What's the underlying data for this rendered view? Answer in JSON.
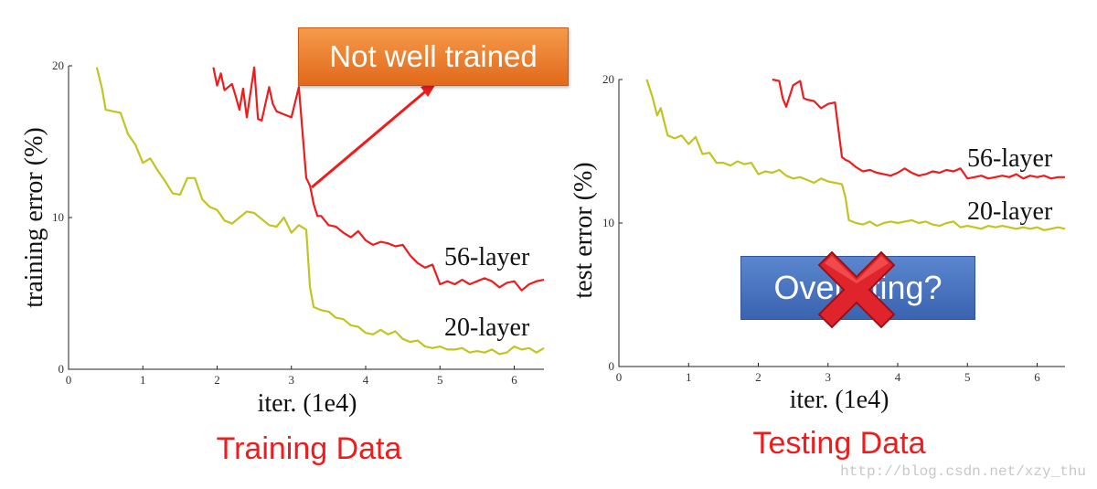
{
  "annotations": {
    "not_well_trained": "Not well trained",
    "overfitting": "Overfitting?"
  },
  "captions": {
    "left": "Training Data",
    "right": "Testing Data"
  },
  "watermark": "http://blog.csdn.net/xzy_thu",
  "colors": {
    "layer56": "#ee1c1c",
    "layer20": "#c3c421",
    "caption": "#ee1c1c",
    "callout": "#ed7d31",
    "overfit_box": "#4472c4",
    "cross": "#e0242b"
  },
  "chart_data": [
    {
      "type": "line",
      "title": "",
      "xlabel": "iter. (1e4)",
      "ylabel": "training error (%)",
      "xlim": [
        0,
        6.4
      ],
      "ylim": [
        0,
        20
      ],
      "xticks": [
        0,
        1,
        2,
        3,
        4,
        5,
        6
      ],
      "yticks": [
        0,
        10,
        20
      ],
      "series": [
        {
          "name": "56-layer",
          "x": [
            1.95,
            2.0,
            2.05,
            2.1,
            2.2,
            2.25,
            2.3,
            2.35,
            2.4,
            2.5,
            2.55,
            2.6,
            2.7,
            2.75,
            2.8,
            2.9,
            3.0,
            3.1,
            3.2,
            3.25,
            3.3,
            3.35,
            3.4,
            3.5,
            3.6,
            3.7,
            3.8,
            3.9,
            4.0,
            4.1,
            4.2,
            4.3,
            4.4,
            4.5,
            4.6,
            4.7,
            4.8,
            4.9,
            5.0,
            5.1,
            5.2,
            5.3,
            5.4,
            5.5,
            5.6,
            5.7,
            5.8,
            5.9,
            6.0,
            6.1,
            6.2,
            6.3,
            6.4
          ],
          "y": [
            19.9,
            18.7,
            19.5,
            18.4,
            18.8,
            18.0,
            17.1,
            18.5,
            16.6,
            19.9,
            16.5,
            16.4,
            18.6,
            17.5,
            17.0,
            16.8,
            16.6,
            18.6,
            12.6,
            12.1,
            10.9,
            10.1,
            10.1,
            9.5,
            9.4,
            9.0,
            8.7,
            9.1,
            8.5,
            8.2,
            8.4,
            8.3,
            8.1,
            8.2,
            7.5,
            7.0,
            6.7,
            6.9,
            5.6,
            5.8,
            5.6,
            5.9,
            5.6,
            5.8,
            6.0,
            5.8,
            5.4,
            5.7,
            5.8,
            5.2,
            5.6,
            5.8,
            5.9
          ]
        },
        {
          "name": "20-layer",
          "x": [
            0.38,
            0.45,
            0.5,
            0.6,
            0.7,
            0.8,
            0.9,
            1.0,
            1.1,
            1.2,
            1.3,
            1.4,
            1.5,
            1.6,
            1.7,
            1.8,
            1.9,
            2.0,
            2.1,
            2.2,
            2.3,
            2.4,
            2.5,
            2.6,
            2.7,
            2.8,
            2.9,
            3.0,
            3.1,
            3.2,
            3.25,
            3.3,
            3.4,
            3.5,
            3.6,
            3.7,
            3.8,
            3.9,
            4.0,
            4.1,
            4.2,
            4.3,
            4.4,
            4.5,
            4.6,
            4.7,
            4.8,
            4.9,
            5.0,
            5.1,
            5.2,
            5.3,
            5.4,
            5.5,
            5.6,
            5.7,
            5.8,
            5.9,
            6.0,
            6.1,
            6.2,
            6.3,
            6.4
          ],
          "y": [
            19.9,
            18.5,
            17.1,
            17.0,
            16.9,
            15.5,
            14.8,
            13.6,
            13.9,
            13.1,
            12.4,
            11.6,
            11.5,
            12.6,
            12.6,
            11.2,
            10.7,
            10.5,
            9.8,
            9.6,
            10.0,
            10.4,
            10.3,
            9.9,
            9.5,
            9.4,
            10.0,
            9.0,
            9.5,
            9.2,
            5.4,
            4.1,
            3.9,
            3.8,
            3.4,
            3.3,
            2.9,
            2.8,
            2.4,
            2.3,
            2.6,
            2.3,
            2.5,
            2.0,
            1.8,
            1.9,
            1.5,
            1.4,
            1.5,
            1.3,
            1.3,
            1.4,
            1.1,
            1.2,
            1.1,
            1.3,
            1.0,
            1.1,
            1.5,
            1.3,
            1.4,
            1.1,
            1.4
          ]
        }
      ]
    },
    {
      "type": "line",
      "title": "",
      "xlabel": "iter. (1e4)",
      "ylabel": "test error (%)",
      "xlim": [
        0,
        6.4
      ],
      "ylim": [
        0,
        20
      ],
      "xticks": [
        0,
        1,
        2,
        3,
        4,
        5,
        6
      ],
      "yticks": [
        0,
        10,
        20
      ],
      "series": [
        {
          "name": "56-layer",
          "x": [
            2.2,
            2.3,
            2.35,
            2.4,
            2.5,
            2.6,
            2.65,
            2.7,
            2.8,
            2.9,
            3.0,
            3.1,
            3.2,
            3.25,
            3.3,
            3.4,
            3.5,
            3.6,
            3.7,
            3.8,
            3.9,
            4.0,
            4.1,
            4.2,
            4.3,
            4.4,
            4.5,
            4.6,
            4.7,
            4.8,
            4.9,
            5.0,
            5.1,
            5.2,
            5.3,
            5.4,
            5.5,
            5.6,
            5.7,
            5.8,
            5.9,
            6.0,
            6.1,
            6.2,
            6.3,
            6.4
          ],
          "y": [
            20.0,
            19.9,
            18.7,
            18.1,
            19.6,
            19.9,
            18.7,
            18.6,
            18.5,
            18.0,
            18.3,
            18.4,
            14.6,
            14.4,
            14.3,
            13.9,
            13.6,
            13.7,
            13.5,
            13.4,
            13.3,
            13.5,
            13.8,
            13.5,
            13.3,
            13.4,
            13.6,
            13.5,
            13.7,
            13.6,
            13.8,
            13.1,
            13.2,
            13.3,
            13.1,
            13.2,
            13.3,
            13.2,
            13.4,
            13.1,
            13.3,
            13.2,
            13.3,
            13.1,
            13.2,
            13.2
          ]
        },
        {
          "name": "20-layer",
          "x": [
            0.4,
            0.48,
            0.55,
            0.6,
            0.7,
            0.8,
            0.9,
            1.0,
            1.1,
            1.2,
            1.3,
            1.4,
            1.5,
            1.6,
            1.7,
            1.8,
            1.9,
            2.0,
            2.1,
            2.2,
            2.3,
            2.4,
            2.5,
            2.6,
            2.7,
            2.8,
            2.9,
            3.0,
            3.1,
            3.2,
            3.25,
            3.3,
            3.4,
            3.5,
            3.6,
            3.7,
            3.8,
            3.9,
            4.0,
            4.1,
            4.2,
            4.3,
            4.4,
            4.5,
            4.6,
            4.7,
            4.8,
            4.9,
            5.0,
            5.1,
            5.2,
            5.3,
            5.4,
            5.5,
            5.6,
            5.7,
            5.8,
            5.9,
            6.0,
            6.1,
            6.2,
            6.3,
            6.4
          ],
          "y": [
            20.0,
            18.8,
            17.5,
            18.0,
            16.1,
            15.9,
            16.1,
            15.5,
            16.0,
            14.8,
            14.9,
            14.2,
            14.2,
            14.0,
            14.3,
            14.1,
            14.2,
            13.4,
            13.6,
            13.5,
            13.7,
            13.3,
            13.1,
            13.2,
            13.0,
            12.8,
            13.1,
            12.9,
            12.8,
            12.7,
            11.8,
            10.2,
            10.0,
            9.9,
            10.1,
            9.8,
            10.0,
            10.1,
            10.0,
            10.1,
            10.2,
            10.0,
            10.1,
            9.9,
            9.8,
            10.0,
            10.1,
            9.7,
            9.8,
            9.7,
            9.6,
            9.8,
            9.7,
            9.8,
            9.7,
            9.6,
            9.7,
            9.6,
            9.7,
            9.5,
            9.6,
            9.7,
            9.6
          ]
        }
      ]
    }
  ]
}
